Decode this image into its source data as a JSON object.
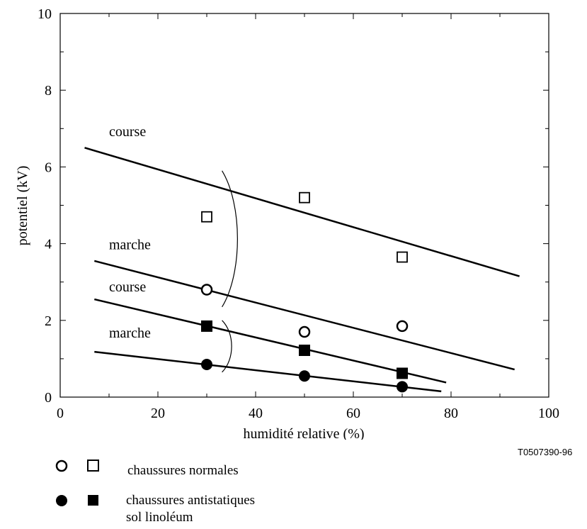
{
  "chart_data": {
    "type": "scatter",
    "xlabel": "humidité relative (%)",
    "ylabel": "potentiel (kV)",
    "xlim": [
      0,
      100
    ],
    "ylim": [
      0,
      10
    ],
    "x_ticks": [
      0,
      20,
      40,
      60,
      80,
      100
    ],
    "y_ticks": [
      0,
      2,
      4,
      6,
      8,
      10
    ],
    "series": [
      {
        "marker": "open-square",
        "fill": "#ffffff",
        "x": [
          30,
          50,
          70
        ],
        "y": [
          4.7,
          5.2,
          3.65
        ]
      },
      {
        "marker": "open-circle",
        "fill": "#ffffff",
        "x": [
          30,
          50,
          70
        ],
        "y": [
          2.8,
          1.7,
          1.85
        ]
      },
      {
        "marker": "filled-square",
        "fill": "#000000",
        "x": [
          30,
          50,
          70
        ],
        "y": [
          1.85,
          1.22,
          0.62
        ]
      },
      {
        "marker": "filled-circle",
        "fill": "#000000",
        "x": [
          30,
          50,
          70
        ],
        "y": [
          0.85,
          0.55,
          0.27
        ]
      }
    ],
    "fit_lines": [
      {
        "label": "course",
        "x": [
          5,
          94
        ],
        "y": [
          6.5,
          3.15
        ]
      },
      {
        "label": "marche",
        "x": [
          7,
          93
        ],
        "y": [
          3.55,
          0.72
        ]
      },
      {
        "label": "course",
        "x": [
          7,
          79
        ],
        "y": [
          2.55,
          0.38
        ]
      },
      {
        "label": "marche",
        "x": [
          7,
          78
        ],
        "y": [
          1.18,
          0.15
        ]
      }
    ],
    "line_labels": [
      {
        "text": "course",
        "x": 10,
        "y": 6.8
      },
      {
        "text": "marche",
        "x": 10,
        "y": 3.85
      },
      {
        "text": "course",
        "x": 10,
        "y": 2.75
      },
      {
        "text": "marche",
        "x": 10,
        "y": 1.55
      }
    ],
    "braces": [
      {
        "x": 34,
        "y_top": 5.9,
        "y_bottom": 2.35
      },
      {
        "x": 34,
        "y_top": 2.0,
        "y_bottom": 0.65
      }
    ]
  },
  "figure_code": "T0507390-96",
  "legend": [
    {
      "symbols": [
        "open-circle",
        "open-square"
      ],
      "lines": [
        "chaussures normales"
      ]
    },
    {
      "symbols": [
        "filled-circle",
        "filled-square"
      ],
      "lines": [
        "chaussures antistatiques",
        "sol linoléum"
      ]
    }
  ]
}
